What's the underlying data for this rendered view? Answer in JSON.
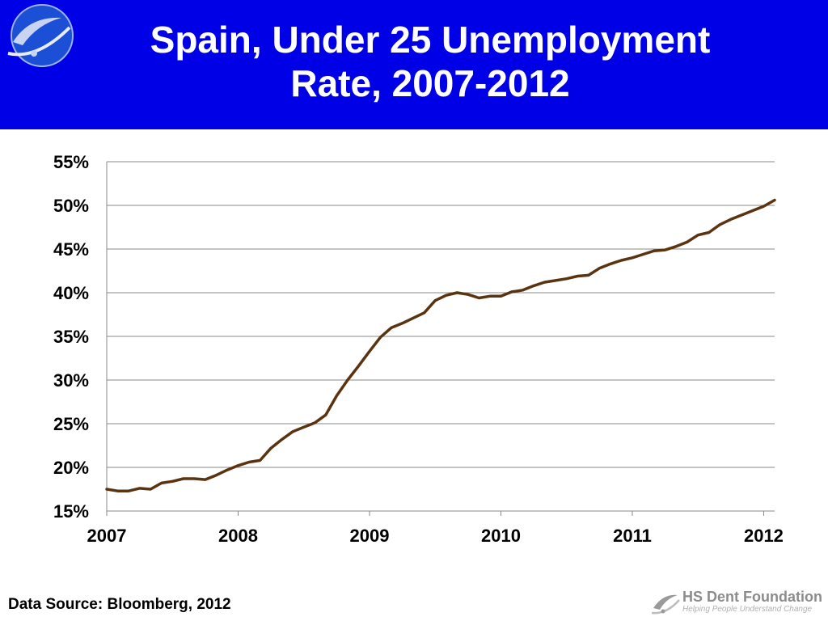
{
  "title_lines": [
    "Spain, Under 25 Unemployment",
    "Rate, 2007-2012"
  ],
  "footer": {
    "source": "Data Source: Bloomberg, 2012",
    "brand": "HS Dent Foundation",
    "tagline": "Helping People Understand Change"
  },
  "colors": {
    "banner": "#0000e6",
    "line": "#5a3310",
    "grid": "#8a8a8a"
  },
  "icons": {
    "banner_logo": "swirl-logo-icon",
    "footer_logo": "hs-dent-foundation-logo-icon"
  },
  "chart_data": {
    "type": "line",
    "title": "Spain, Under 25 Unemployment Rate, 2007-2012",
    "xlabel": "",
    "ylabel": "",
    "x_tick_labels": [
      "2007",
      "2008",
      "2009",
      "2010",
      "2011",
      "2012"
    ],
    "y_tick_labels": [
      "15%",
      "20%",
      "25%",
      "30%",
      "35%",
      "40%",
      "45%",
      "50%",
      "55%"
    ],
    "ylim": [
      15,
      55
    ],
    "xlim": [
      "2007-01",
      "2012-02"
    ],
    "grid": true,
    "legend": "none",
    "x": [
      "2007-01",
      "2007-02",
      "2007-03",
      "2007-04",
      "2007-05",
      "2007-06",
      "2007-07",
      "2007-08",
      "2007-09",
      "2007-10",
      "2007-11",
      "2007-12",
      "2008-01",
      "2008-02",
      "2008-03",
      "2008-04",
      "2008-05",
      "2008-06",
      "2008-07",
      "2008-08",
      "2008-09",
      "2008-10",
      "2008-11",
      "2008-12",
      "2009-01",
      "2009-02",
      "2009-03",
      "2009-04",
      "2009-05",
      "2009-06",
      "2009-07",
      "2009-08",
      "2009-09",
      "2009-10",
      "2009-11",
      "2009-12",
      "2010-01",
      "2010-02",
      "2010-03",
      "2010-04",
      "2010-05",
      "2010-06",
      "2010-07",
      "2010-08",
      "2010-09",
      "2010-10",
      "2010-11",
      "2010-12",
      "2011-01",
      "2011-02",
      "2011-03",
      "2011-04",
      "2011-05",
      "2011-06",
      "2011-07",
      "2011-08",
      "2011-09",
      "2011-10",
      "2011-11",
      "2011-12",
      "2012-01",
      "2012-02"
    ],
    "series": [
      {
        "values": [
          17.5,
          17.3,
          17.3,
          17.6,
          17.5,
          18.2,
          18.4,
          18.7,
          18.7,
          18.6,
          19.1,
          19.7,
          20.2,
          20.6,
          20.8,
          22.2,
          23.2,
          24.1,
          24.6,
          25.1,
          26.0,
          28.2,
          30.0,
          31.6,
          33.3,
          34.9,
          36.0,
          36.5,
          37.1,
          37.7,
          39.1,
          39.7,
          40.0,
          39.8,
          39.4,
          39.6,
          39.6,
          40.1,
          40.3,
          40.8,
          41.2,
          41.4,
          41.6,
          41.9,
          42.0,
          42.8,
          43.3,
          43.7,
          44.0,
          44.4,
          44.8,
          44.9,
          45.3,
          45.8,
          46.6,
          46.9,
          47.8,
          48.4,
          48.9,
          49.4,
          49.9,
          50.6
        ]
      }
    ]
  }
}
